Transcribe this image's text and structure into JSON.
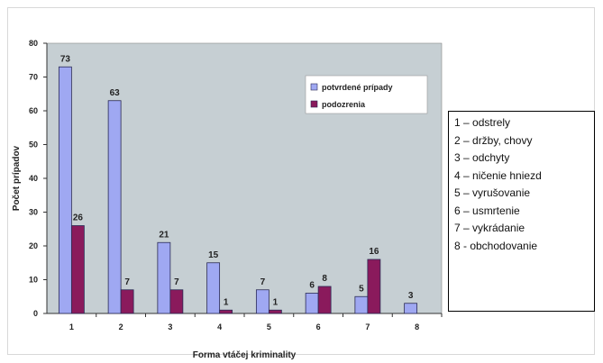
{
  "chart_data": {
    "type": "bar",
    "categories": [
      "1",
      "2",
      "3",
      "4",
      "5",
      "6",
      "7",
      "8"
    ],
    "series": [
      {
        "name": "potvrdené prípady",
        "color": "#9fa8f2",
        "values": [
          73,
          63,
          21,
          15,
          7,
          6,
          5,
          3
        ]
      },
      {
        "name": "podozrenia",
        "color": "#8a1a5c",
        "values": [
          26,
          7,
          7,
          1,
          1,
          8,
          16,
          null
        ]
      }
    ],
    "xlabel": "Forma vtáčej kriminality",
    "ylabel": "Počet prípadov",
    "ylim": [
      0,
      80
    ],
    "yticks": [
      0,
      10,
      20,
      30,
      40,
      50,
      60,
      70,
      80
    ],
    "grid": false,
    "plot_background": "#c6cfd3",
    "legend": "top-right"
  },
  "key_box": {
    "items": [
      "1 – odstrely",
      "2 – držby, chovy",
      "3 – odchyty",
      "4 – ničenie hniezd",
      "5 – vyrušovanie",
      "6 – usmrtenie",
      "7 – vykrádanie",
      "8 - obchodovanie"
    ]
  }
}
